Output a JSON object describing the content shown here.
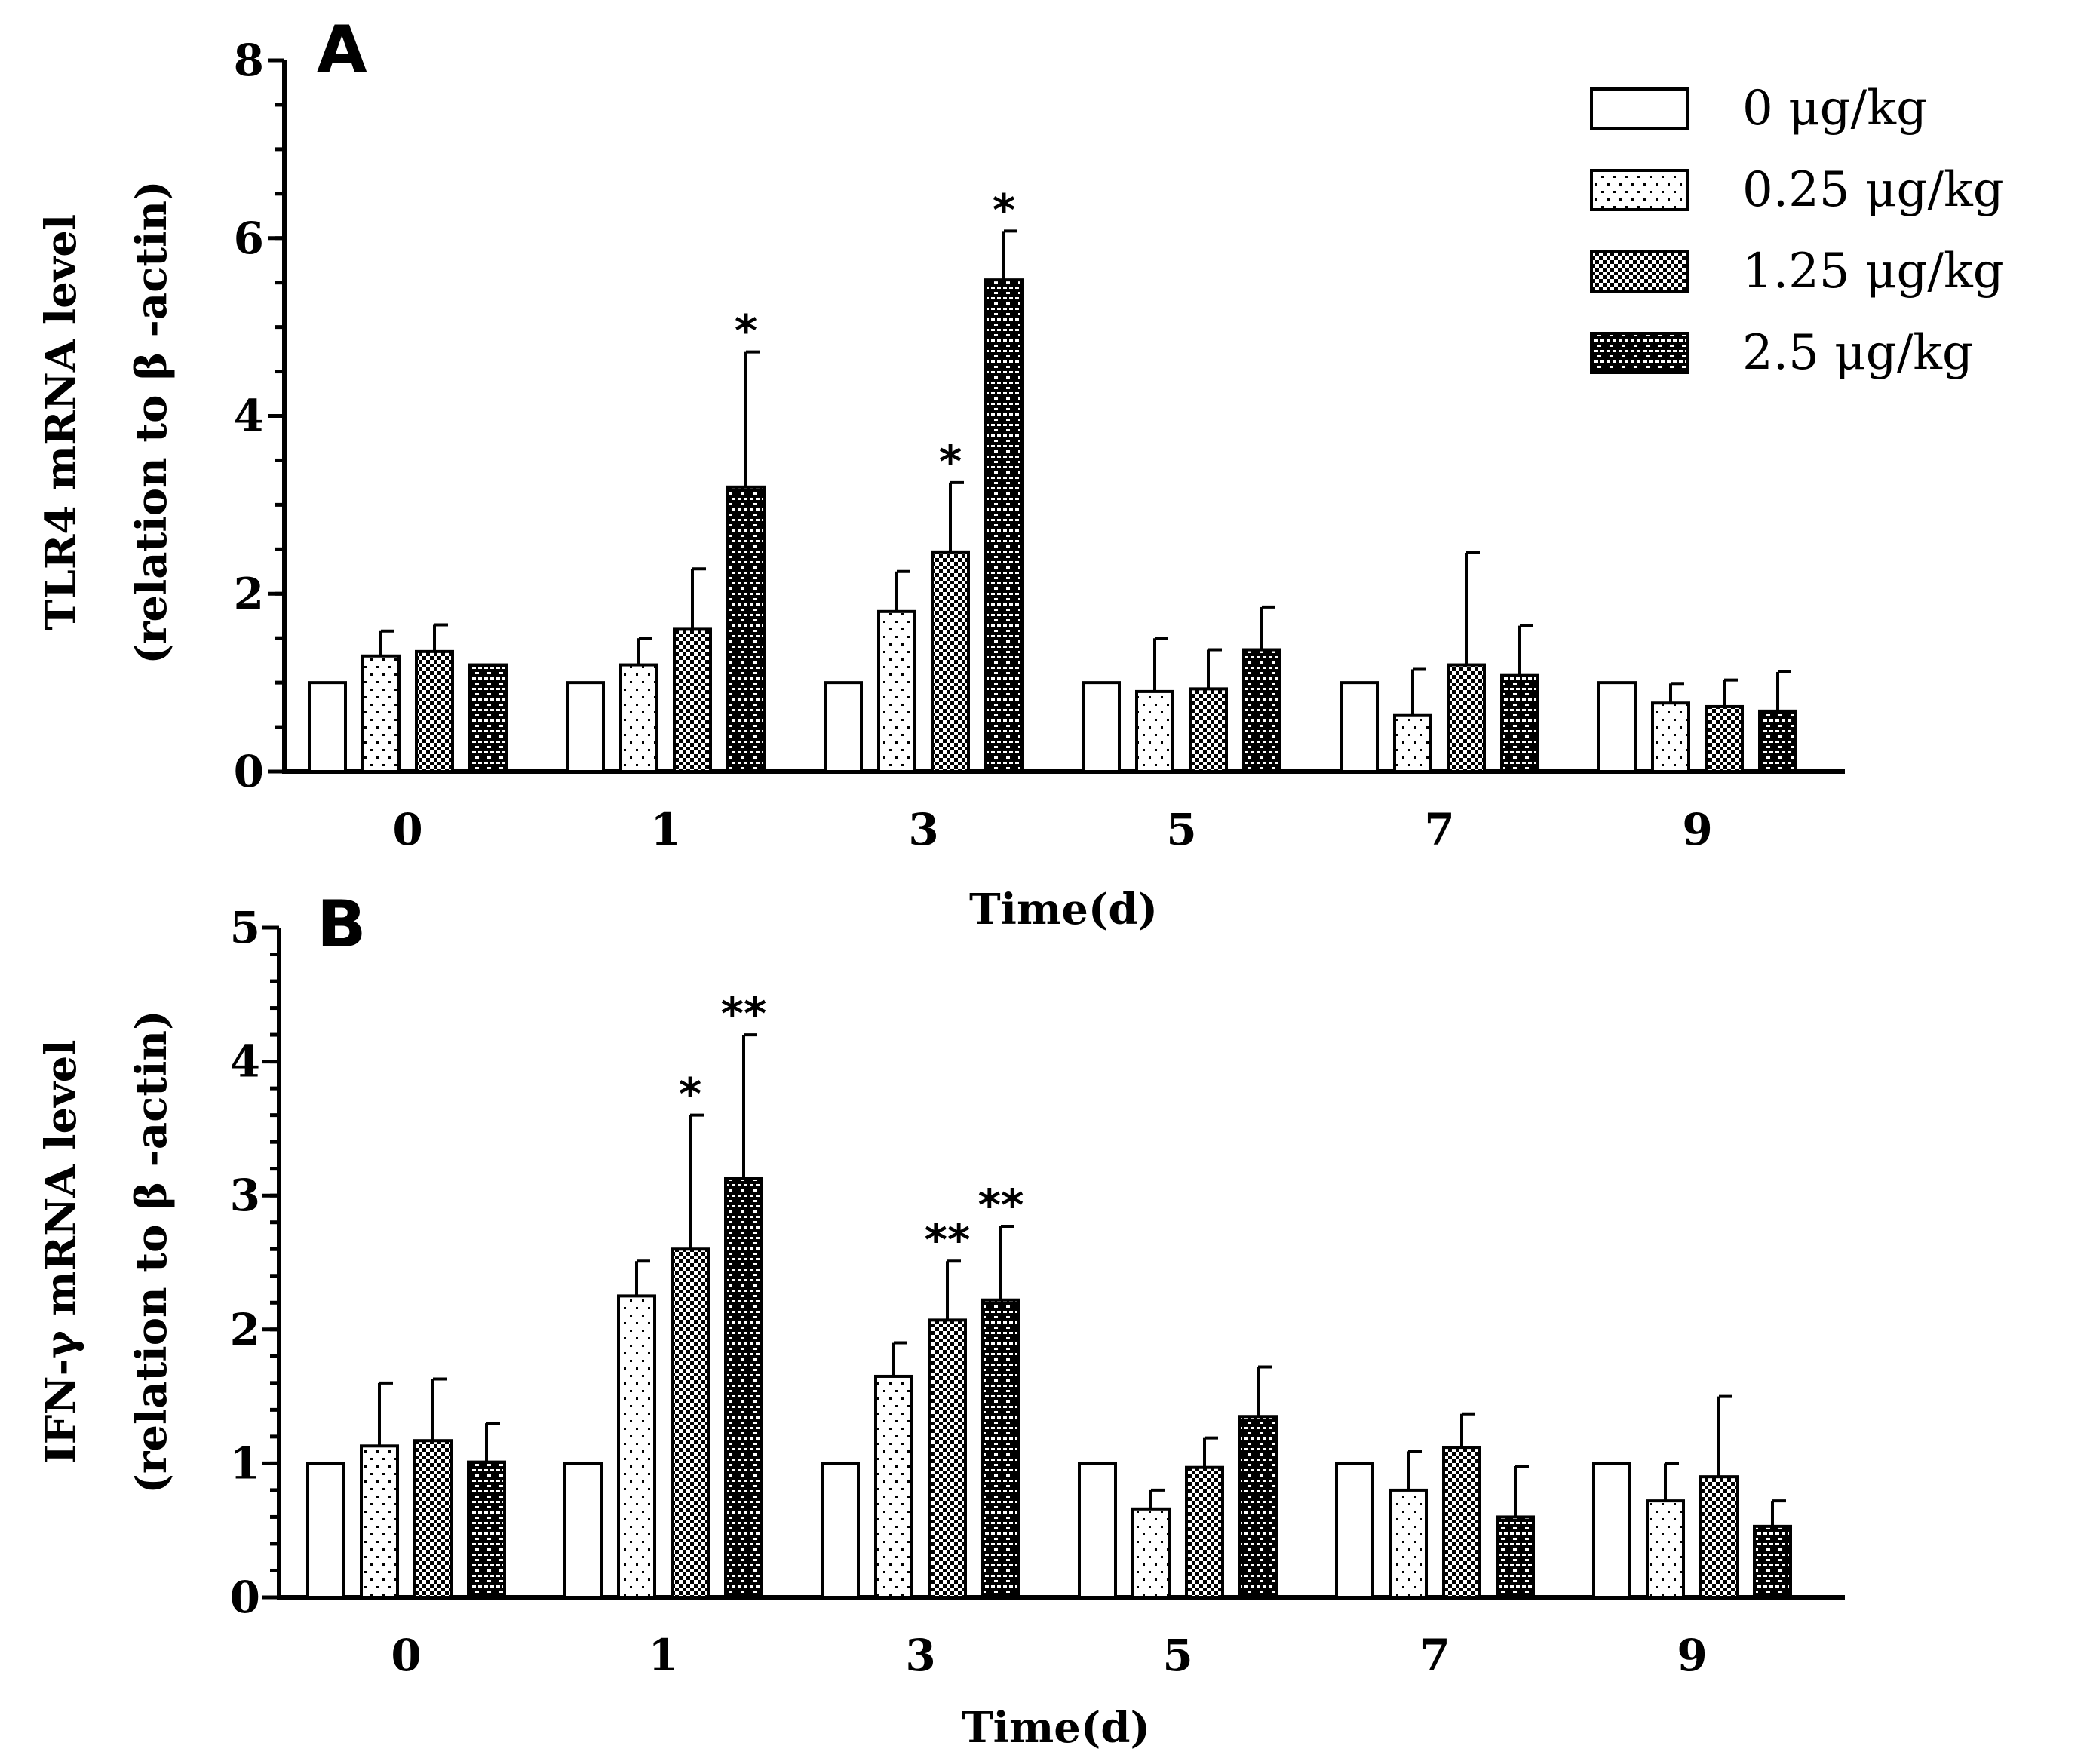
{
  "chart_data": [
    {
      "panel": "A",
      "type": "bar",
      "categories": [
        "0",
        "1",
        "3",
        "5",
        "7",
        "9"
      ],
      "xlabel": "Time(d)",
      "ylabel_line1": "TLR4 mRNA level",
      "ylabel_line2": "(relation to β -actin)",
      "ylim": [
        0,
        8
      ],
      "yticks": [
        "0",
        "2",
        "4",
        "6",
        "8"
      ],
      "series": [
        {
          "name": "0 μg/kg",
          "pattern": "white",
          "values": [
            1.0,
            1.0,
            1.0,
            1.0,
            1.0,
            1.0
          ],
          "errors": [
            0,
            0,
            0,
            0,
            0,
            0
          ],
          "sig": [
            "",
            "",
            "",
            "",
            "",
            ""
          ]
        },
        {
          "name": "0.25 μg/kg",
          "pattern": "dots",
          "values": [
            1.3,
            1.2,
            1.8,
            0.9,
            0.63,
            0.77
          ],
          "errors": [
            0.28,
            0.3,
            0.45,
            0.6,
            0.52,
            0.22
          ],
          "sig": [
            "",
            "",
            "",
            "",
            "",
            ""
          ]
        },
        {
          "name": "1.25 μg/kg",
          "pattern": "checker",
          "values": [
            1.35,
            1.6,
            2.47,
            0.93,
            1.2,
            0.73
          ],
          "errors": [
            0.3,
            0.68,
            0.78,
            0.44,
            1.26,
            0.3
          ],
          "sig": [
            "",
            "",
            "*",
            "",
            "",
            ""
          ]
        },
        {
          "name": "2.5 μg/kg",
          "pattern": "brick",
          "values": [
            1.2,
            3.2,
            5.53,
            1.37,
            1.08,
            0.68
          ],
          "errors": [
            0,
            1.52,
            0.55,
            0.48,
            0.56,
            0.44
          ],
          "sig": [
            "",
            "*",
            "*",
            "",
            "",
            ""
          ]
        }
      ]
    },
    {
      "panel": "B",
      "type": "bar",
      "categories": [
        "0",
        "1",
        "3",
        "5",
        "7",
        "9"
      ],
      "xlabel": "Time(d)",
      "ylabel_line1": "IFN-γ mRNA level",
      "ylabel_line2": "(relation to β -actin)",
      "ylim": [
        0,
        5
      ],
      "yticks": [
        "0",
        "1",
        "2",
        "3",
        "4",
        "5"
      ],
      "series": [
        {
          "name": "0 μg/kg",
          "pattern": "white",
          "values": [
            1.0,
            1.0,
            1.0,
            1.0,
            1.0,
            1.0
          ],
          "errors": [
            0,
            0,
            0,
            0,
            0,
            0
          ],
          "sig": [
            "",
            "",
            "",
            "",
            "",
            ""
          ]
        },
        {
          "name": "0.25 μg/kg",
          "pattern": "dots",
          "values": [
            1.13,
            2.25,
            1.65,
            0.66,
            0.8,
            0.72
          ],
          "errors": [
            0.47,
            0.26,
            0.25,
            0.14,
            0.29,
            0.28
          ],
          "sig": [
            "",
            "",
            "",
            "",
            "",
            ""
          ]
        },
        {
          "name": "1.25 μg/kg",
          "pattern": "checker",
          "values": [
            1.17,
            2.6,
            2.07,
            0.97,
            1.12,
            0.9
          ],
          "errors": [
            0.46,
            1.0,
            0.44,
            0.22,
            0.25,
            0.6
          ],
          "sig": [
            "",
            "*",
            "**",
            "",
            "",
            ""
          ]
        },
        {
          "name": "2.5 μg/kg",
          "pattern": "brick",
          "values": [
            1.01,
            3.13,
            2.22,
            1.35,
            0.6,
            0.53
          ],
          "errors": [
            0.29,
            1.07,
            0.55,
            0.37,
            0.38,
            0.19
          ],
          "sig": [
            "",
            "**",
            "**",
            "",
            "",
            ""
          ]
        }
      ]
    }
  ],
  "legend": [
    "0 μg/kg",
    "0.25 μg/kg",
    "1.25 μg/kg",
    "2.5 μg/kg"
  ],
  "colors": {
    "ink": "#000000",
    "background": "#ffffff"
  }
}
